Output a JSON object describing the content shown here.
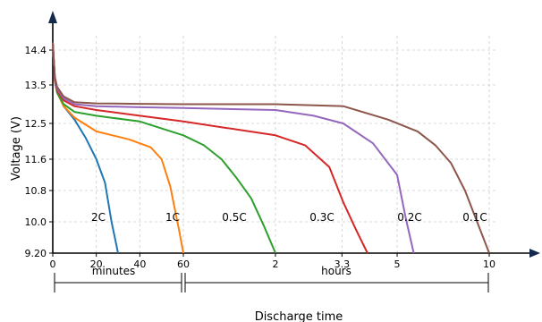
{
  "chart_data": {
    "type": "line",
    "title": "",
    "xlabel": "Discharge time",
    "ylabel": "Voltage (V)",
    "grid": true,
    "ylim": [
      9.2,
      15.2
    ],
    "yticks": [
      "9.20",
      "10.0",
      "10.8",
      "11.6",
      "12.5",
      "13.5",
      "14.4"
    ],
    "x_segments": [
      {
        "name": "minutes",
        "scale": "linear",
        "range": [
          0,
          60
        ],
        "ticks": [
          "0",
          "20",
          "40",
          "60"
        ]
      },
      {
        "name": "hours",
        "scale": "log",
        "range": [
          1,
          10
        ],
        "ticks": [
          "2",
          "3.3",
          "5",
          "10"
        ]
      }
    ],
    "series": [
      {
        "name": "2C",
        "segment": "minutes",
        "color": "#1f77b4",
        "x": [
          0,
          1,
          2,
          5,
          10,
          15,
          20,
          24,
          27,
          30
        ],
        "y": [
          14.6,
          13.6,
          13.3,
          12.95,
          12.6,
          12.15,
          11.6,
          11.0,
          10.0,
          9.2
        ]
      },
      {
        "name": "1C",
        "segment": "minutes",
        "color": "#ff7f0e",
        "x": [
          0,
          1,
          2,
          5,
          10,
          20,
          35,
          45,
          50,
          54,
          58,
          60
        ],
        "y": [
          14.6,
          13.6,
          13.3,
          12.95,
          12.65,
          12.3,
          12.1,
          11.9,
          11.6,
          10.9,
          9.8,
          9.2
        ]
      },
      {
        "name": "0.5C",
        "segment": "minutes+hours",
        "color": "#2ca02c",
        "x_minutes": [
          0,
          1,
          2,
          5,
          10,
          20,
          40,
          60,
          70,
          80,
          90,
          100,
          110,
          120
        ],
        "y": [
          14.6,
          13.6,
          13.3,
          13.0,
          12.8,
          12.7,
          12.55,
          12.2,
          11.95,
          11.6,
          11.1,
          10.6,
          9.9,
          9.2
        ]
      },
      {
        "name": "0.3C",
        "segment": "minutes+hours",
        "color": "#d62728",
        "x_minutes": [
          0,
          1,
          2,
          5,
          10,
          20,
          40,
          60,
          120,
          150,
          180,
          200,
          220,
          240
        ],
        "y": [
          14.6,
          13.6,
          13.35,
          13.1,
          12.95,
          12.85,
          12.7,
          12.55,
          12.2,
          11.95,
          11.4,
          10.5,
          9.8,
          9.2
        ]
      },
      {
        "name": "0.2C",
        "segment": "minutes+hours",
        "color": "#9467bd",
        "x_minutes": [
          0,
          1,
          2,
          5,
          10,
          20,
          40,
          60,
          120,
          160,
          200,
          250,
          300,
          320,
          340
        ],
        "y": [
          14.6,
          13.65,
          13.4,
          13.15,
          13.0,
          12.95,
          12.92,
          12.9,
          12.85,
          12.7,
          12.5,
          12.0,
          11.2,
          10.1,
          9.2
        ]
      },
      {
        "name": "0.1C",
        "segment": "minutes+hours",
        "color": "#8c564b",
        "x_minutes": [
          0,
          1,
          2,
          5,
          10,
          20,
          40,
          60,
          120,
          200,
          280,
          350,
          400,
          450,
          500,
          560,
          600
        ],
        "y": [
          14.6,
          13.7,
          13.45,
          13.2,
          13.05,
          13.02,
          13.01,
          13.0,
          13.0,
          12.95,
          12.6,
          12.3,
          11.95,
          11.5,
          10.8,
          9.8,
          9.2
        ]
      }
    ],
    "annotations": [
      "2C",
      "1C",
      "0.5C",
      "0.3C",
      "0.2C",
      "0.1C"
    ],
    "bracket_labels": [
      "minutes",
      "hours"
    ]
  }
}
